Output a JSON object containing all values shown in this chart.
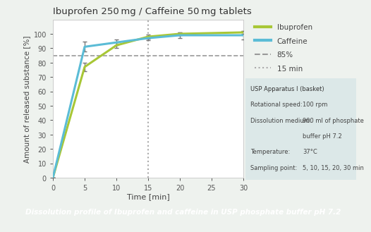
{
  "title": "Ibuprofen 250 mg / Caffeine 50 mg tablets",
  "xlabel": "Time [min]",
  "ylabel": "Amount of released substance [%]",
  "ibuprofen_x": [
    0,
    5,
    10,
    15,
    20,
    30
  ],
  "ibuprofen_y": [
    0,
    77,
    92,
    98,
    100,
    101
  ],
  "ibuprofen_err": [
    0,
    3,
    2,
    1.5,
    1,
    1
  ],
  "caffeine_x": [
    0,
    5,
    10,
    15,
    20,
    30
  ],
  "caffeine_y": [
    0,
    91,
    94,
    97,
    99,
    99
  ],
  "caffeine_err": [
    0,
    3.5,
    2,
    1.5,
    2,
    3
  ],
  "ibuprofen_color": "#a8c736",
  "caffeine_color": "#5bbcd6",
  "ref_line_y": 85,
  "vline_x": 15,
  "xlim": [
    0,
    30
  ],
  "ylim": [
    0,
    110
  ],
  "xticks": [
    0,
    5,
    10,
    15,
    20,
    25,
    30
  ],
  "yticks": [
    0,
    10,
    20,
    30,
    40,
    50,
    60,
    70,
    80,
    90,
    100
  ],
  "bg_color": "#eef2ee",
  "footer_text": "Dissolution profile of Ibuprofen and caffeine in USP phosphate buffer pH 7.2",
  "footer_bg": "#5bbcdc",
  "legend_labels": [
    "Ibuprofen",
    "Caffeine",
    "85%",
    "15 min"
  ],
  "info_line0": "USP Apparatus I (basket)",
  "info_line1_key": "Rotational speed:",
  "info_line1_val": "100 rpm",
  "info_line2_key": "Dissolution medium:",
  "info_line2_val": "900 ml of phosphate",
  "info_line2_val2": "buffer pH 7.2",
  "info_line3_key": "Temperature:",
  "info_line3_val": "37°C",
  "info_line4_key": "Sampling point:",
  "info_line4_val": "5, 10, 15, 20, 30 min",
  "info_box_color": "#dce8e8"
}
